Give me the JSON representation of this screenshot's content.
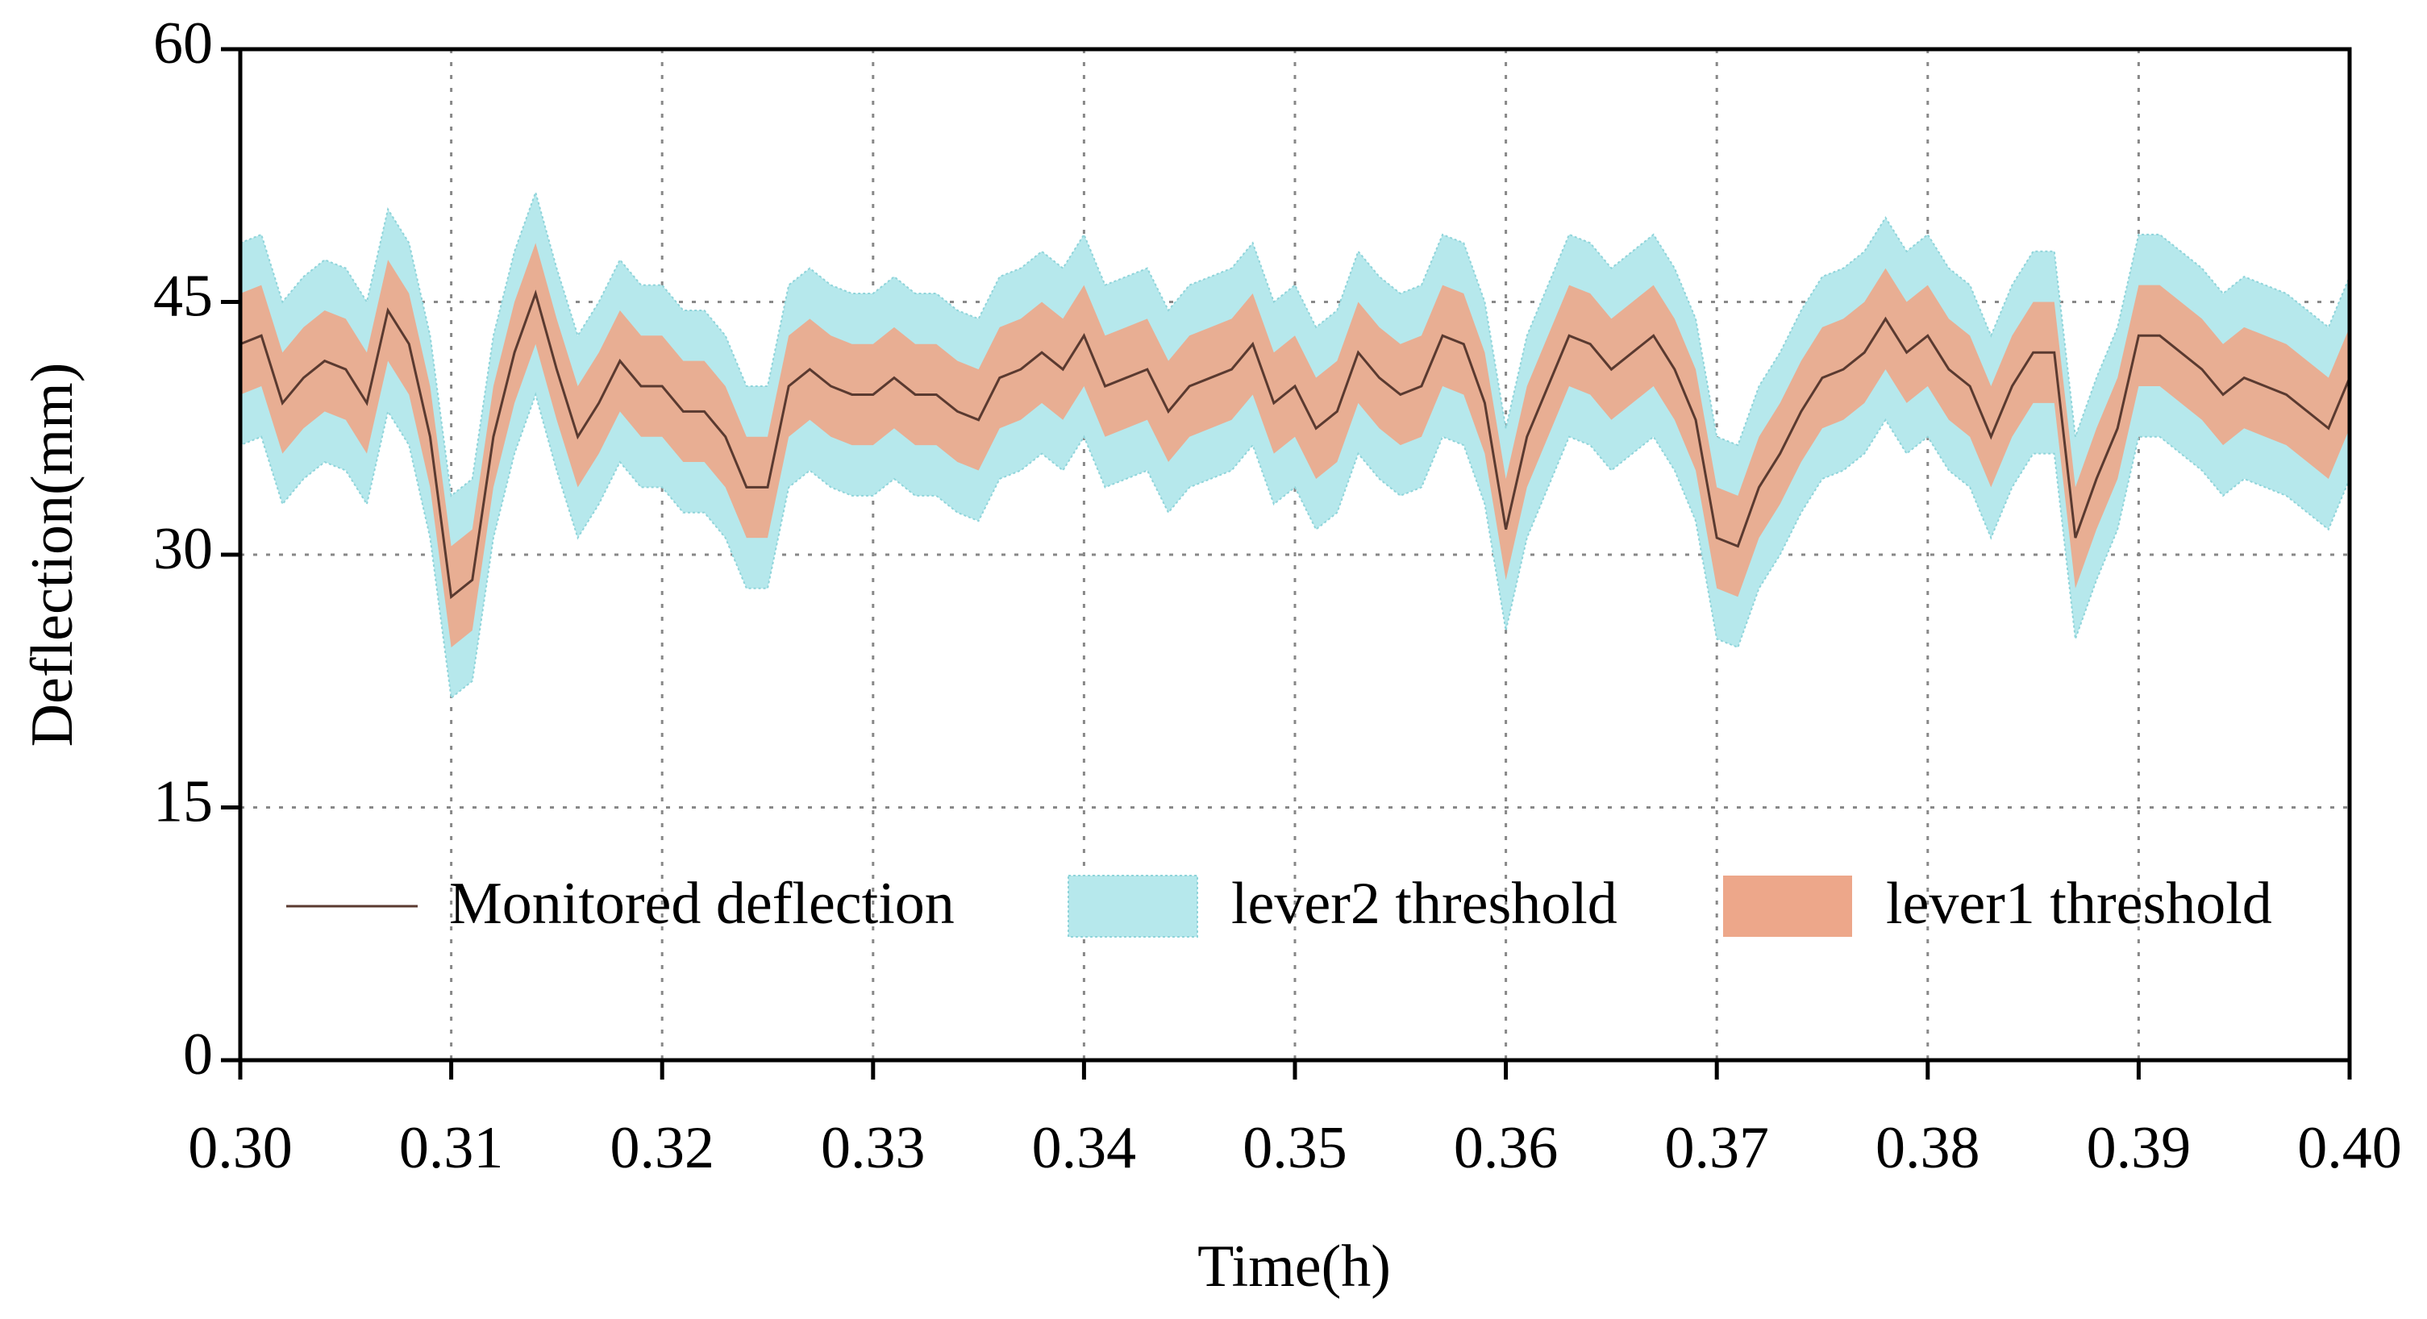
{
  "chart_data": {
    "type": "line",
    "x_label": "Time(h)",
    "y_label": "Deflection(mm)",
    "x": [
      0.3,
      0.301,
      0.302,
      0.303,
      0.304,
      0.305,
      0.306,
      0.307,
      0.308,
      0.309,
      0.31,
      0.311,
      0.312,
      0.313,
      0.314,
      0.315,
      0.316,
      0.317,
      0.318,
      0.319,
      0.32,
      0.321,
      0.322,
      0.323,
      0.324,
      0.325,
      0.326,
      0.327,
      0.328,
      0.329,
      0.33,
      0.331,
      0.332,
      0.333,
      0.334,
      0.335,
      0.336,
      0.337,
      0.338,
      0.339,
      0.34,
      0.341,
      0.342,
      0.343,
      0.344,
      0.345,
      0.346,
      0.347,
      0.348,
      0.349,
      0.35,
      0.351,
      0.352,
      0.353,
      0.354,
      0.355,
      0.356,
      0.357,
      0.358,
      0.359,
      0.36,
      0.361,
      0.362,
      0.363,
      0.364,
      0.365,
      0.366,
      0.367,
      0.368,
      0.369,
      0.37,
      0.371,
      0.372,
      0.373,
      0.374,
      0.375,
      0.376,
      0.377,
      0.378,
      0.379,
      0.38,
      0.381,
      0.382,
      0.383,
      0.384,
      0.385,
      0.386,
      0.387,
      0.388,
      0.389,
      0.39,
      0.391,
      0.392,
      0.393,
      0.394,
      0.395,
      0.396,
      0.397,
      0.398,
      0.399,
      0.4
    ],
    "series": [
      {
        "name": "Monitored deflection",
        "color": "#5a3a30",
        "values": [
          42.5,
          43,
          39,
          40.5,
          41.5,
          41,
          39,
          44.5,
          42.5,
          37,
          27.5,
          28.5,
          37,
          42,
          45.5,
          41,
          37,
          39,
          41.5,
          40,
          40,
          38.5,
          38.5,
          37,
          34,
          34,
          40,
          41,
          40,
          39.5,
          39.5,
          40.5,
          39.5,
          39.5,
          38.5,
          38,
          40.5,
          41,
          42,
          41,
          43,
          40,
          40.5,
          41,
          38.5,
          40,
          40.5,
          41,
          42.5,
          39,
          40,
          37.5,
          38.5,
          42,
          40.5,
          39.5,
          40,
          43,
          42.5,
          39,
          31.5,
          37,
          40,
          43,
          42.5,
          41,
          42,
          43,
          41,
          38,
          31,
          30.5,
          34,
          36,
          38.5,
          40.5,
          41,
          42,
          44,
          42,
          43,
          41,
          40,
          37,
          40,
          42,
          42,
          31,
          34.5,
          37.5,
          43,
          43,
          42,
          41,
          39.5,
          40.5,
          40,
          39.5,
          38.5,
          37.5,
          40.5
        ]
      },
      {
        "name": "lever2 threshold",
        "color": "#b6e8ec",
        "lower": [
          36.5,
          37,
          33,
          34.5,
          35.5,
          35,
          33,
          38.5,
          36.5,
          31,
          21.5,
          22.5,
          31,
          36,
          39.5,
          35,
          31,
          33,
          35.5,
          34,
          34,
          32.5,
          32.5,
          31,
          28,
          28,
          34,
          35,
          34,
          33.5,
          33.5,
          34.5,
          33.5,
          33.5,
          32.5,
          32,
          34.5,
          35,
          36,
          35,
          37,
          34,
          34.5,
          35,
          32.5,
          34,
          34.5,
          35,
          36.5,
          33,
          34,
          31.5,
          32.5,
          36,
          34.5,
          33.5,
          34,
          37,
          36.5,
          33,
          25.5,
          31,
          34,
          37,
          36.5,
          35,
          36,
          37,
          35,
          32,
          25,
          24.5,
          28,
          30,
          32.5,
          34.5,
          35,
          36,
          38,
          36,
          37,
          35,
          34,
          31,
          34,
          36,
          36,
          25,
          28.5,
          31.5,
          37,
          37,
          36,
          35,
          33.5,
          34.5,
          34,
          33.5,
          32.5,
          31.5,
          34.5
        ],
        "upper": [
          48.5,
          49,
          45,
          46.5,
          47.5,
          47,
          45,
          50.5,
          48.5,
          43,
          33.5,
          34.5,
          43,
          48,
          51.5,
          47,
          43,
          45,
          47.5,
          46,
          46,
          44.5,
          44.5,
          43,
          40,
          40,
          46,
          47,
          46,
          45.5,
          45.5,
          46.5,
          45.5,
          45.5,
          44.5,
          44,
          46.5,
          47,
          48,
          47,
          49,
          46,
          46.5,
          47,
          44.5,
          46,
          46.5,
          47,
          48.5,
          45,
          46,
          43.5,
          44.5,
          48,
          46.5,
          45.5,
          46,
          49,
          48.5,
          45,
          37.5,
          43,
          46,
          49,
          48.5,
          47,
          48,
          49,
          47,
          44,
          37,
          36.5,
          40,
          42,
          44.5,
          46.5,
          47,
          48,
          50,
          48,
          49,
          47,
          46,
          43,
          46,
          48,
          48,
          37,
          40.5,
          43.5,
          49,
          49,
          48,
          47,
          45.5,
          46.5,
          46,
          45.5,
          44.5,
          43.5,
          46.5
        ]
      },
      {
        "name": "lever1 threshold",
        "color": "#eda78a",
        "lower": [
          39.5,
          40,
          36,
          37.5,
          38.5,
          38,
          36,
          41.5,
          39.5,
          34,
          24.5,
          25.5,
          34,
          39,
          42.5,
          38,
          34,
          36,
          38.5,
          37,
          37,
          35.5,
          35.5,
          34,
          31,
          31,
          37,
          38,
          37,
          36.5,
          36.5,
          37.5,
          36.5,
          36.5,
          35.5,
          35,
          37.5,
          38,
          39,
          38,
          40,
          37,
          37.5,
          38,
          35.5,
          37,
          37.5,
          38,
          39.5,
          36,
          37,
          34.5,
          35.5,
          39,
          37.5,
          36.5,
          37,
          40,
          39.5,
          36,
          28.5,
          34,
          37,
          40,
          39.5,
          38,
          39,
          40,
          38,
          35,
          28,
          27.5,
          31,
          33,
          35.5,
          37.5,
          38,
          39,
          41,
          39,
          40,
          38,
          37,
          34,
          37,
          39,
          39,
          28,
          31.5,
          34.5,
          40,
          40,
          39,
          38,
          36.5,
          37.5,
          37,
          36.5,
          35.5,
          34.5,
          37.5
        ],
        "upper": [
          45.5,
          46,
          42,
          43.5,
          44.5,
          44,
          42,
          47.5,
          45.5,
          40,
          30.5,
          31.5,
          40,
          45,
          48.5,
          44,
          40,
          42,
          44.5,
          43,
          43,
          41.5,
          41.5,
          40,
          37,
          37,
          43,
          44,
          43,
          42.5,
          42.5,
          43.5,
          42.5,
          42.5,
          41.5,
          41,
          43.5,
          44,
          45,
          44,
          46,
          43,
          43.5,
          44,
          41.5,
          43,
          43.5,
          44,
          45.5,
          42,
          43,
          40.5,
          41.5,
          45,
          43.5,
          42.5,
          43,
          46,
          45.5,
          42,
          34.5,
          40,
          43,
          46,
          45.5,
          44,
          45,
          46,
          44,
          41,
          34,
          33.5,
          37,
          39,
          41.5,
          43.5,
          44,
          45,
          47,
          45,
          46,
          44,
          43,
          40,
          43,
          45,
          45,
          34,
          37.5,
          40.5,
          46,
          46,
          45,
          44,
          42.5,
          43.5,
          43,
          42.5,
          41.5,
          40.5,
          43.5
        ]
      }
    ],
    "xlim": [
      0.3,
      0.4
    ],
    "xticks": [
      {
        "value": 0.3,
        "label": "0.30"
      },
      0.31,
      0.32,
      0.33,
      0.34,
      0.35,
      0.36,
      0.37,
      0.38,
      0.39,
      {
        "value": 0.4,
        "label": "0.40"
      }
    ],
    "ylim": [
      0,
      60
    ],
    "yticks": [
      0,
      15,
      30,
      45,
      60
    ],
    "grid": true,
    "legend": "lower center"
  }
}
